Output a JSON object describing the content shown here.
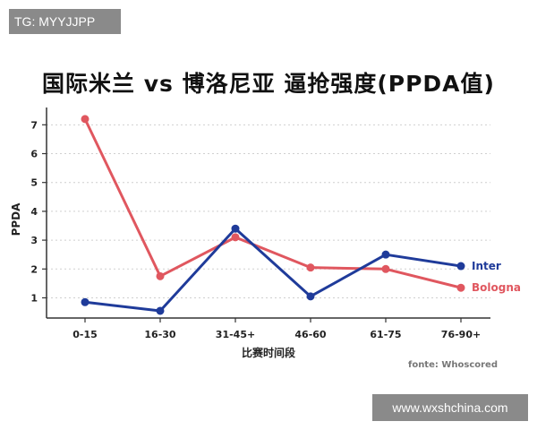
{
  "watermark_top": "TG: MYYJJPP",
  "watermark_bottom": "www.wxshchina.com",
  "chart_data": {
    "type": "line",
    "title": "国际米兰 vs 博洛尼亚  逼抢强度(PPDA值)",
    "xlabel": "比赛时间段",
    "ylabel": "PPDA",
    "source": "fonte: Whoscored",
    "categories": [
      "0-15",
      "16-30",
      "31-45+",
      "46-60",
      "61-75",
      "76-90+"
    ],
    "ylim": [
      0.3,
      7.6
    ],
    "yticks": [
      1,
      2,
      3,
      4,
      5,
      6,
      7
    ],
    "grid": true,
    "series": [
      {
        "name": "Inter",
        "color": "#1f3b9a",
        "values": [
          0.85,
          0.55,
          3.4,
          1.05,
          2.5,
          2.1
        ]
      },
      {
        "name": "Bologna",
        "color": "#e0575f",
        "values": [
          7.2,
          1.75,
          3.1,
          2.05,
          2.0,
          1.35
        ]
      }
    ]
  }
}
